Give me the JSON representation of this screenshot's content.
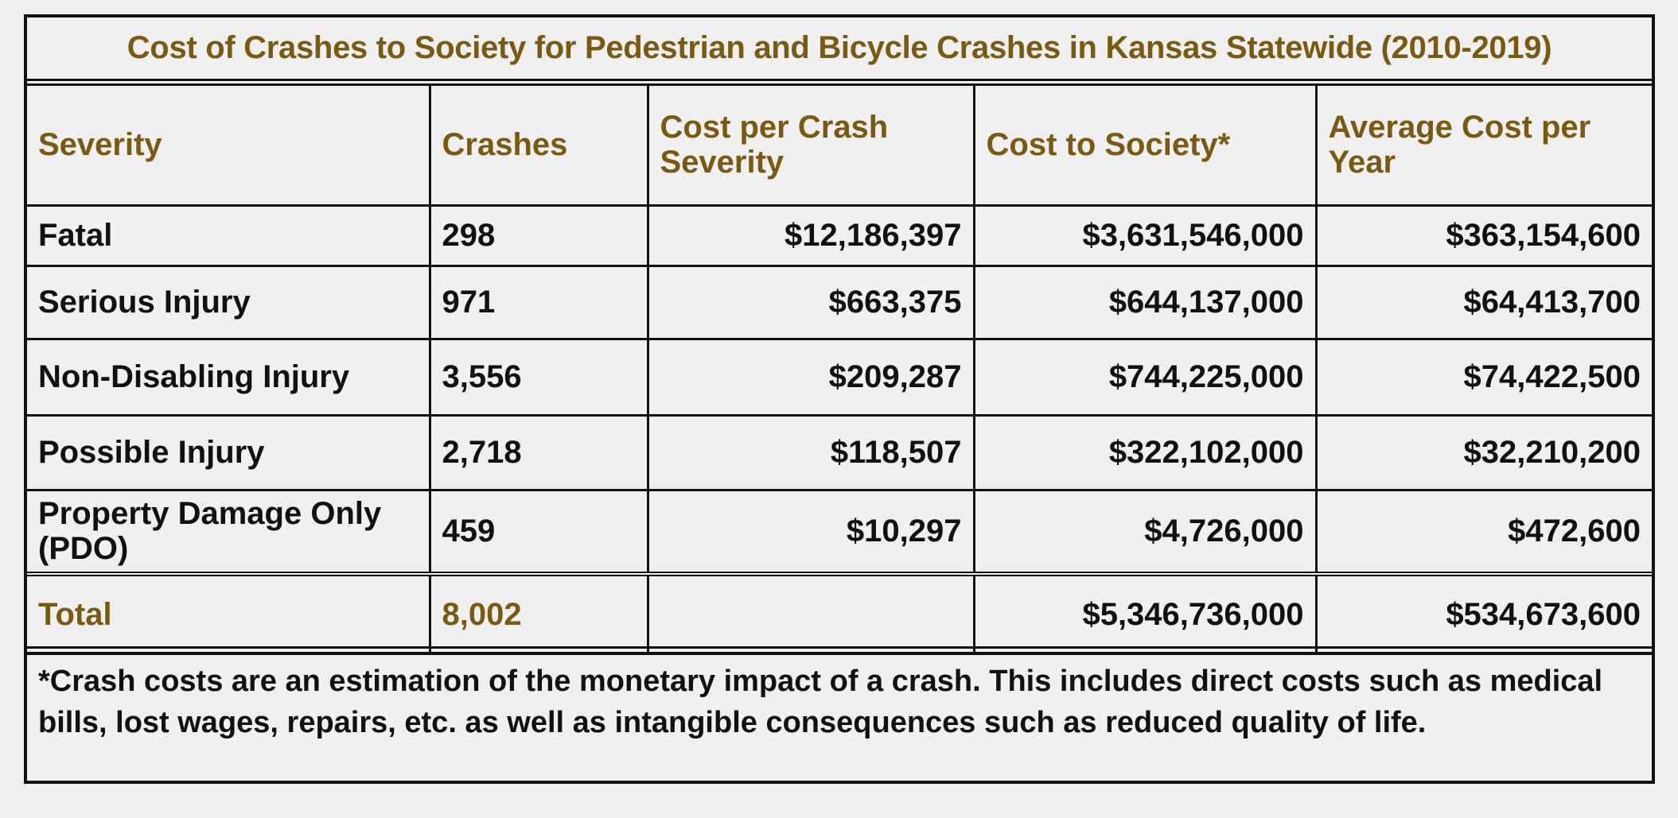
{
  "title": "Cost of Crashes to Society for Pedestrian and Bicycle Crashes in Kansas Statewide (2010-2019)",
  "headers": {
    "severity": "Severity",
    "crashes": "Crashes",
    "cost_per_crash": "Cost per Crash Severity",
    "cost_to_society": "Cost to Society*",
    "avg_cost_per_year": "Average Cost per Year"
  },
  "rows": [
    {
      "severity": "Fatal",
      "crashes": "298",
      "cost_per_crash": "$12,186,397",
      "cost_to_society": "$3,631,546,000",
      "avg_cost_per_year": "$363,154,600"
    },
    {
      "severity": "Serious Injury",
      "crashes": "971",
      "cost_per_crash": "$663,375",
      "cost_to_society": "$644,137,000",
      "avg_cost_per_year": "$64,413,700"
    },
    {
      "severity": "Non-Disabling Injury",
      "crashes": "3,556",
      "cost_per_crash": "$209,287",
      "cost_to_society": "$744,225,000",
      "avg_cost_per_year": "$74,422,500"
    },
    {
      "severity": "Possible Injury",
      "crashes": "2,718",
      "cost_per_crash": "$118,507",
      "cost_to_society": "$322,102,000",
      "avg_cost_per_year": "$32,210,200"
    },
    {
      "severity": "Property Damage Only (PDO)",
      "crashes": "459",
      "cost_per_crash": "$10,297",
      "cost_to_society": "$4,726,000",
      "avg_cost_per_year": "$472,600"
    }
  ],
  "total": {
    "label": "Total",
    "crashes": "8,002",
    "cost_per_crash": "",
    "cost_to_society": "$5,346,736,000",
    "avg_cost_per_year": "$534,673,600"
  },
  "footnote": "*Crash costs are an estimation of the monetary impact of a crash. This includes direct costs such as medical bills, lost wages, repairs, etc. as well as intangible consequences such as reduced quality of life.",
  "colors": {
    "accent_text": "#7a5a12",
    "border": "#111111",
    "background": "#f0f0f0"
  }
}
